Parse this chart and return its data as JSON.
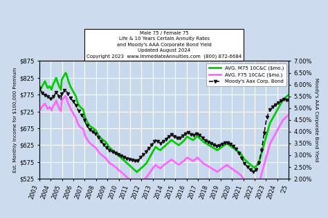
{
  "title_line1": "Male 75 / Female 75",
  "title_line2": "Life & 10 Years Certain Annuity Rates",
  "title_line3": "and Moody's AAA Corporate Bond Yield",
  "title_line4": "Updated August 2024",
  "title_line5": "Copyright 2023  www.ImmediateAnnuities.com  (800) 872-6684",
  "ylabel_left": "Est. Monthly Income for $100,000 Premium",
  "ylabel_right": "Moody's AAA Corporate Bond Yield",
  "ylim_left": [
    525,
    875
  ],
  "ylim_right": [
    2.0,
    7.0
  ],
  "yticks_left": [
    525,
    575,
    625,
    675,
    725,
    775,
    825,
    875
  ],
  "yticks_right": [
    2.0,
    2.5,
    3.0,
    3.5,
    4.0,
    4.5,
    5.0,
    5.5,
    6.0,
    6.5,
    7.0
  ],
  "xtick_labels": [
    "2003",
    "2004",
    "2005",
    "2006",
    "2007",
    "2008",
    "2009",
    "2010",
    "2011",
    "2012",
    "2013",
    "2014",
    "2015",
    "2016",
    "2017",
    "2018",
    "2019",
    "2020",
    "2021",
    "2022",
    "2023",
    "2024",
    "'25"
  ],
  "legend_m75": "AVG. M75 10C&C ($mo.)",
  "legend_f75": "AVG. F75 10C&C ($mo.)",
  "legend_bond": "Moody's Aax Corp. Bond",
  "color_m75": "#00cc00",
  "color_f75": "#ff66ff",
  "color_bond": "#111111",
  "bg_color": "#c8d8ed",
  "fig_color": "#ccdcee",
  "grid_color": "#ffffff",
  "m75": [
    800,
    790,
    795,
    800,
    805,
    810,
    815,
    808,
    800,
    795,
    798,
    800,
    795,
    790,
    800,
    808,
    812,
    820,
    825,
    815,
    808,
    800,
    795,
    790,
    820,
    825,
    830,
    835,
    840,
    835,
    825,
    815,
    808,
    800,
    795,
    790,
    785,
    780,
    775,
    770,
    760,
    750,
    745,
    740,
    738,
    735,
    732,
    730,
    715,
    705,
    700,
    695,
    690,
    685,
    682,
    680,
    678,
    676,
    674,
    672,
    670,
    665,
    660,
    655,
    650,
    648,
    645,
    643,
    640,
    638,
    636,
    634,
    630,
    625,
    620,
    618,
    615,
    613,
    610,
    608,
    605,
    603,
    600,
    598,
    595,
    592,
    590,
    588,
    585,
    583,
    580,
    578,
    575,
    573,
    570,
    568,
    565,
    563,
    560,
    558,
    555,
    553,
    550,
    548,
    545,
    548,
    550,
    552,
    555,
    558,
    560,
    562,
    565,
    568,
    570,
    575,
    580,
    585,
    590,
    595,
    600,
    605,
    610,
    615,
    620,
    618,
    615,
    613,
    612,
    610,
    612,
    615,
    618,
    620,
    622,
    625,
    628,
    630,
    632,
    635,
    638,
    640,
    638,
    636,
    634,
    632,
    630,
    628,
    626,
    625,
    628,
    630,
    632,
    635,
    638,
    640,
    645,
    648,
    650,
    648,
    646,
    645,
    643,
    641,
    640,
    642,
    645,
    648,
    650,
    652,
    648,
    645,
    643,
    640,
    638,
    635,
    633,
    631,
    630,
    628,
    626,
    625,
    623,
    621,
    620,
    618,
    616,
    615,
    613,
    611,
    610,
    612,
    614,
    616,
    618,
    620,
    622,
    624,
    626,
    628,
    630,
    628,
    626,
    624,
    622,
    620,
    618,
    616,
    614,
    612,
    610,
    608,
    606,
    604,
    602,
    600,
    595,
    590,
    585,
    582,
    580,
    578,
    575,
    572,
    570,
    568,
    565,
    563,
    560,
    558,
    560,
    562,
    565,
    570,
    575,
    580,
    590,
    600,
    610,
    620,
    630,
    640,
    650,
    660,
    670,
    680,
    690,
    695,
    700,
    705,
    710,
    715,
    720,
    725,
    730,
    735,
    740,
    745,
    750,
    755,
    760,
    762,
    765,
    768,
    770,
    772,
    775
  ],
  "f75": [
    740,
    730,
    735,
    740,
    743,
    745,
    748,
    743,
    738,
    733,
    735,
    738,
    735,
    728,
    736,
    742,
    746,
    752,
    758,
    748,
    742,
    735,
    730,
    726,
    758,
    762,
    765,
    768,
    772,
    765,
    755,
    748,
    742,
    735,
    730,
    725,
    720,
    715,
    710,
    706,
    698,
    690,
    685,
    680,
    678,
    676,
    674,
    672,
    660,
    652,
    646,
    642,
    638,
    634,
    631,
    628,
    626,
    624,
    622,
    620,
    618,
    614,
    610,
    606,
    602,
    600,
    597,
    595,
    592,
    590,
    588,
    586,
    582,
    578,
    574,
    572,
    570,
    568,
    566,
    564,
    562,
    560,
    558,
    556,
    552,
    550,
    548,
    546,
    543,
    541,
    538,
    536,
    533,
    531,
    528,
    526,
    524,
    522,
    520,
    518,
    516,
    514,
    512,
    510,
    508,
    510,
    512,
    514,
    516,
    518,
    520,
    522,
    524,
    526,
    528,
    532,
    536,
    540,
    544,
    548,
    552,
    556,
    560,
    563,
    566,
    564,
    561,
    559,
    558,
    556,
    558,
    561,
    564,
    566,
    568,
    570,
    572,
    574,
    576,
    578,
    580,
    582,
    580,
    578,
    576,
    574,
    572,
    570,
    568,
    567,
    570,
    572,
    574,
    576,
    578,
    580,
    584,
    586,
    588,
    586,
    584,
    583,
    581,
    579,
    578,
    580,
    582,
    584,
    586,
    588,
    584,
    581,
    579,
    576,
    574,
    571,
    569,
    567,
    566,
    564,
    562,
    561,
    559,
    557,
    556,
    554,
    552,
    551,
    549,
    547,
    546,
    548,
    550,
    552,
    554,
    556,
    558,
    560,
    562,
    564,
    566,
    564,
    562,
    560,
    558,
    556,
    554,
    552,
    550,
    548,
    546,
    544,
    542,
    540,
    538,
    536,
    532,
    528,
    523,
    520,
    518,
    516,
    513,
    510,
    508,
    506,
    503,
    501,
    498,
    496,
    498,
    500,
    503,
    508,
    513,
    518,
    528,
    538,
    548,
    558,
    568,
    578,
    588,
    598,
    608,
    618,
    628,
    634,
    639,
    644,
    649,
    654,
    659,
    664,
    670,
    675,
    680,
    685,
    690,
    695,
    700,
    702,
    705,
    708,
    710,
    712,
    715
  ],
  "bond": [
    5.85,
    5.78,
    5.72,
    5.65,
    5.6,
    5.58,
    5.55,
    5.52,
    5.5,
    5.48,
    5.45,
    5.42,
    5.4,
    5.38,
    5.42,
    5.48,
    5.55,
    5.62,
    5.68,
    5.62,
    5.55,
    5.48,
    5.42,
    5.35,
    5.6,
    5.65,
    5.7,
    5.75,
    5.8,
    5.72,
    5.62,
    5.55,
    5.48,
    5.42,
    5.38,
    5.33,
    5.28,
    5.22,
    5.18,
    5.12,
    5.05,
    4.95,
    4.88,
    4.8,
    4.75,
    4.7,
    4.65,
    4.6,
    4.5,
    4.4,
    4.32,
    4.25,
    4.18,
    4.12,
    4.08,
    4.05,
    4.02,
    4.0,
    3.98,
    3.95,
    3.92,
    3.88,
    3.82,
    3.76,
    3.7,
    3.65,
    3.6,
    3.55,
    3.5,
    3.45,
    3.4,
    3.36,
    3.32,
    3.28,
    3.24,
    3.2,
    3.18,
    3.16,
    3.14,
    3.12,
    3.1,
    3.08,
    3.06,
    3.04,
    3.02,
    3.0,
    2.98,
    2.97,
    2.95,
    2.93,
    2.91,
    2.9,
    2.88,
    2.86,
    2.85,
    2.84,
    2.82,
    2.81,
    2.8,
    2.79,
    2.78,
    2.77,
    2.76,
    2.75,
    2.74,
    2.78,
    2.82,
    2.86,
    2.9,
    2.94,
    2.98,
    3.02,
    3.06,
    3.1,
    3.15,
    3.2,
    3.25,
    3.3,
    3.35,
    3.4,
    3.45,
    3.5,
    3.55,
    3.6,
    3.65,
    3.62,
    3.58,
    3.55,
    3.52,
    3.5,
    3.52,
    3.55,
    3.58,
    3.62,
    3.65,
    3.68,
    3.72,
    3.75,
    3.78,
    3.82,
    3.85,
    3.88,
    3.85,
    3.82,
    3.79,
    3.76,
    3.74,
    3.72,
    3.7,
    3.68,
    3.72,
    3.75,
    3.78,
    3.82,
    3.85,
    3.88,
    3.92,
    3.96,
    4.0,
    3.97,
    3.94,
    3.91,
    3.88,
    3.86,
    3.84,
    3.86,
    3.88,
    3.9,
    3.92,
    3.95,
    3.9,
    3.86,
    3.82,
    3.78,
    3.74,
    3.7,
    3.66,
    3.62,
    3.6,
    3.58,
    3.56,
    3.54,
    3.52,
    3.5,
    3.48,
    3.46,
    3.44,
    3.42,
    3.4,
    3.38,
    3.36,
    3.38,
    3.4,
    3.42,
    3.44,
    3.46,
    3.48,
    3.5,
    3.52,
    3.54,
    3.56,
    3.54,
    3.52,
    3.5,
    3.48,
    3.45,
    3.42,
    3.38,
    3.34,
    3.3,
    3.25,
    3.2,
    3.14,
    3.08,
    3.02,
    2.96,
    2.88,
    2.8,
    2.72,
    2.66,
    2.6,
    2.55,
    2.5,
    2.46,
    2.42,
    2.38,
    2.35,
    2.32,
    2.3,
    2.28,
    2.32,
    2.38,
    2.45,
    2.55,
    2.68,
    2.82,
    3.0,
    3.2,
    3.45,
    3.7,
    3.95,
    4.2,
    4.45,
    4.62,
    4.75,
    4.85,
    4.92,
    4.97,
    5.0,
    5.05,
    5.08,
    5.12,
    5.15,
    5.18,
    5.2,
    5.22,
    5.25,
    5.28,
    5.3,
    5.32,
    5.35,
    5.38,
    5.4,
    5.38,
    5.35,
    5.32,
    5.3
  ]
}
